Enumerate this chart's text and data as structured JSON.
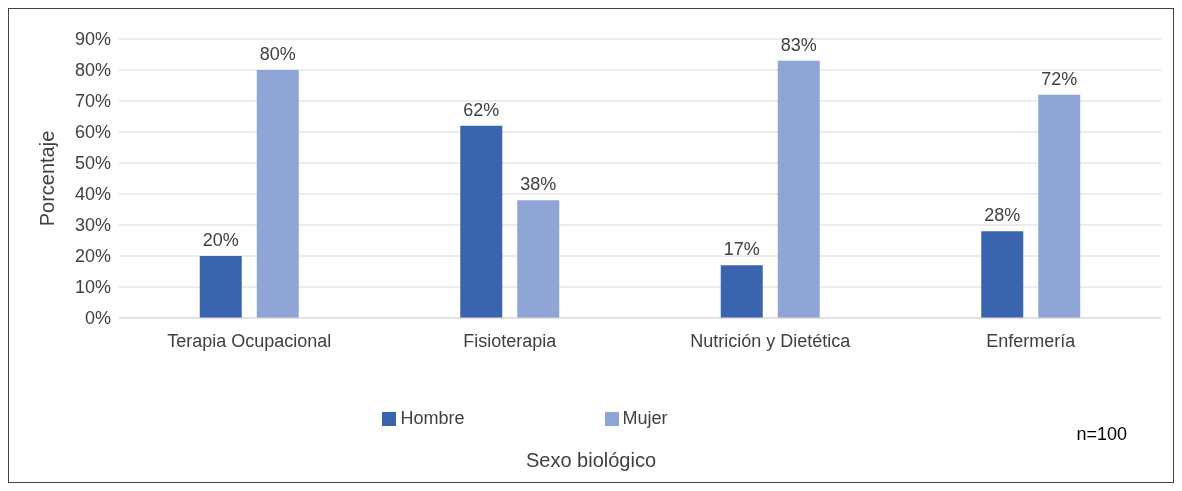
{
  "chart_data": {
    "type": "bar",
    "ylabel": "Porcentaje",
    "xlabel": "Sexo biológico",
    "categories": [
      "Terapia Ocupacional",
      "Fisioterapia",
      "Nutrición y Dietética",
      "Enfermería"
    ],
    "series": [
      {
        "name": "Hombre",
        "color": "#3a64ad",
        "values": [
          20,
          62,
          17,
          28
        ],
        "value_labels": [
          "20%",
          "62%",
          "17%",
          "28%"
        ]
      },
      {
        "name": "Mujer",
        "color": "#8fa5d6",
        "values": [
          80,
          38,
          83,
          72
        ],
        "value_labels": [
          "80%",
          "38%",
          "83%",
          "72%"
        ]
      }
    ],
    "ylim": [
      0,
      90
    ],
    "yticks": [
      {
        "value": 0,
        "label": "0%"
      },
      {
        "value": 10,
        "label": "10%"
      },
      {
        "value": 20,
        "label": "20%"
      },
      {
        "value": 30,
        "label": "30%"
      },
      {
        "value": 40,
        "label": "40%"
      },
      {
        "value": 50,
        "label": "50%"
      },
      {
        "value": 60,
        "label": "60%"
      },
      {
        "value": 70,
        "label": "70%"
      },
      {
        "value": 80,
        "label": "80%"
      },
      {
        "value": 90,
        "label": "90%"
      }
    ],
    "grid": "y",
    "legend": "bottom",
    "annotations": [
      "n=100"
    ]
  }
}
